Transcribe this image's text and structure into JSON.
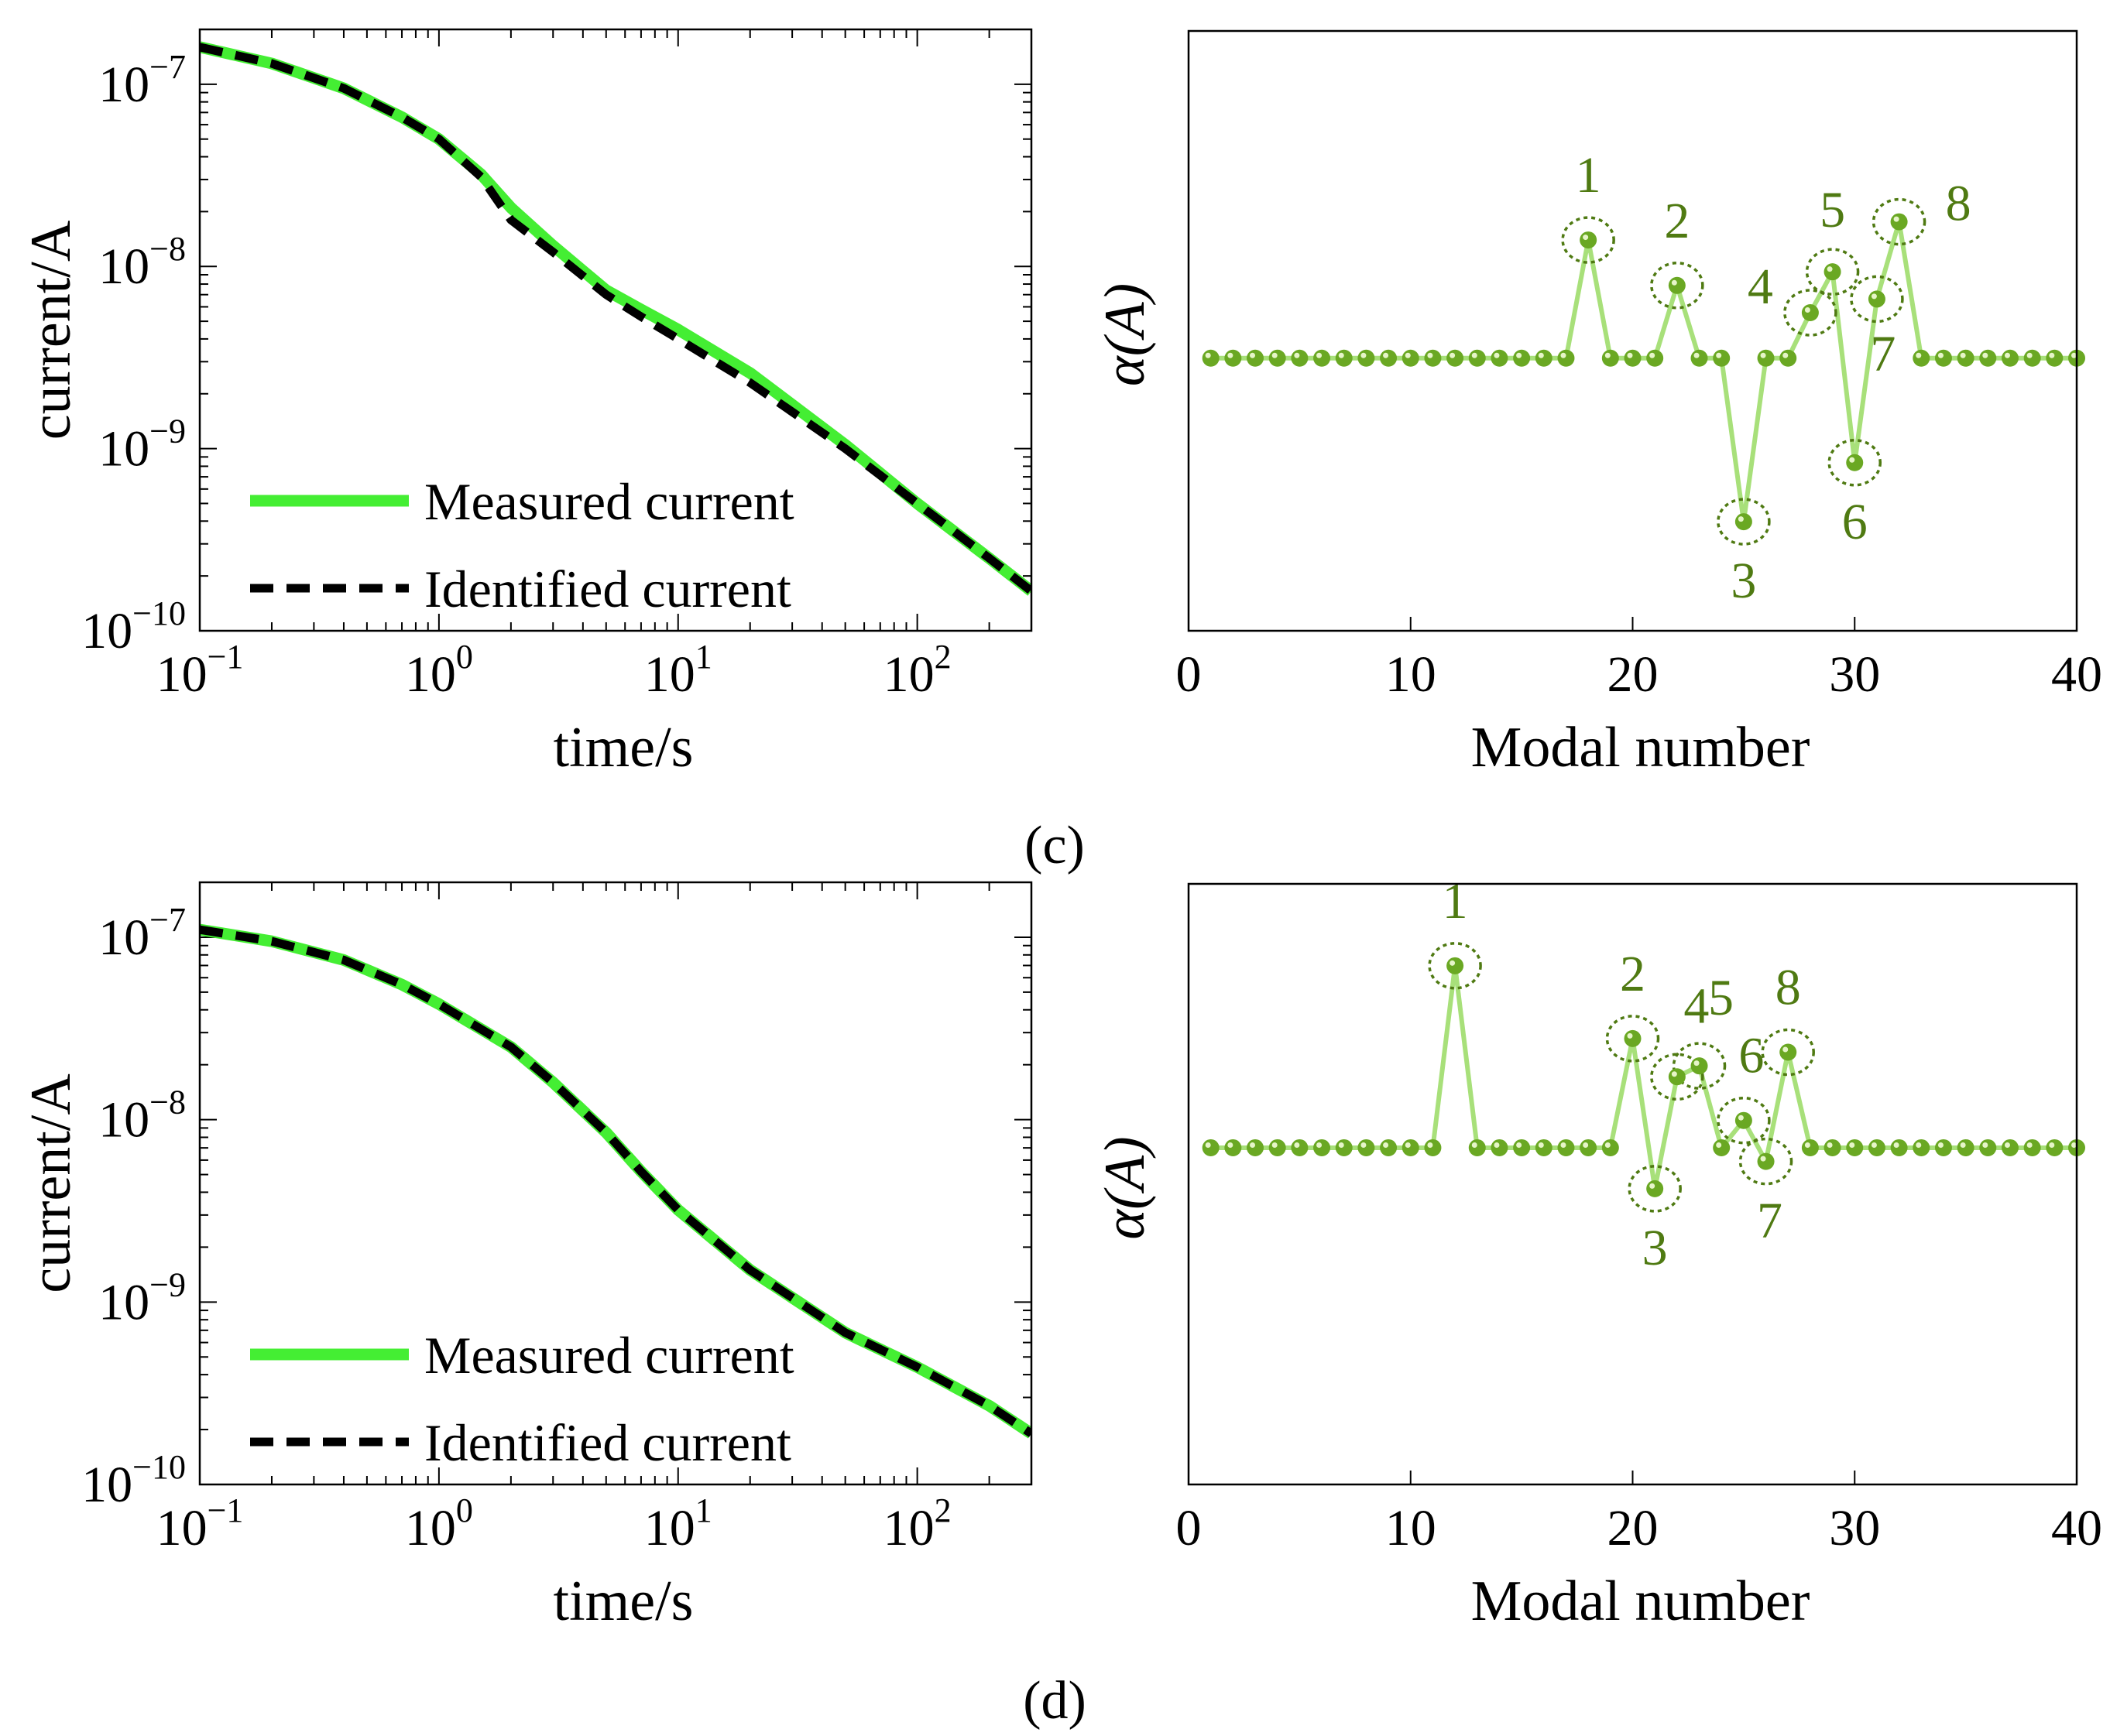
{
  "colors": {
    "measured": "#44ee33",
    "identified": "#000000",
    "modal": "#6aa823",
    "modal_line": "#a8e07a",
    "annotation": "#4f7a12"
  },
  "panels": [
    {
      "label": "(c)"
    },
    {
      "label": "(d)"
    }
  ],
  "chart_data": [
    {
      "id": "c-left",
      "type": "line",
      "scale": "loglog",
      "xlabel": "time/s",
      "ylabel": "current/A",
      "xlim": [
        0.1,
        300
      ],
      "ylim": [
        1e-10,
        2e-07
      ],
      "xticks": [
        0.1,
        1,
        10,
        100
      ],
      "xtick_labels": [
        "10",
        "10",
        "10",
        "10"
      ],
      "xtick_exps": [
        "−1",
        "0",
        "1",
        "2"
      ],
      "yticks": [
        1e-10,
        1e-09,
        1e-08,
        1e-07
      ],
      "ytick_labels": [
        "10",
        "10",
        "10",
        "10"
      ],
      "ytick_exps": [
        "−10",
        "−9",
        "−8",
        "−7"
      ],
      "legend_position": "bottom-left",
      "series": [
        {
          "name": "Measured current",
          "style": "solid",
          "x": [
            0.1,
            0.2,
            0.4,
            0.7,
            1.0,
            1.5,
            2.0,
            3.0,
            5.0,
            7.0,
            10,
            20,
            50,
            100,
            200,
            300
          ],
          "y": [
            1.6e-07,
            1.3e-07,
            9.5e-08,
            6.6e-08,
            5e-08,
            3.2e-08,
            2.1e-08,
            1.3e-08,
            7.4e-09,
            5.8e-09,
            4.5e-09,
            2.6e-09,
            1.05e-09,
            5e-10,
            2.5e-10,
            1.65e-10
          ]
        },
        {
          "name": "Identified current",
          "style": "dashed",
          "x": [
            0.1,
            0.2,
            0.4,
            0.7,
            1.0,
            1.5,
            2.0,
            3.0,
            5.0,
            7.0,
            10,
            20,
            50,
            100,
            200,
            300
          ],
          "y": [
            1.6e-07,
            1.3e-07,
            9.5e-08,
            6.6e-08,
            5e-08,
            3.1e-08,
            1.8e-08,
            1.2e-08,
            7e-09,
            5.3e-09,
            4e-09,
            2.3e-09,
            1e-09,
            5e-10,
            2.5e-10,
            1.65e-10
          ]
        }
      ]
    },
    {
      "id": "c-right",
      "type": "line",
      "markers": true,
      "xlabel": "Modal number",
      "ylabel": "α(A)",
      "xlim": [
        0,
        40
      ],
      "ylim": [
        -3,
        3.6
      ],
      "xticks": [
        0,
        10,
        20,
        30,
        40
      ],
      "xtick_labels": [
        "0",
        "10",
        "20",
        "30",
        "40"
      ],
      "series": [
        {
          "name": "alpha",
          "x": [
            1,
            2,
            3,
            4,
            5,
            6,
            7,
            8,
            9,
            10,
            11,
            12,
            13,
            14,
            15,
            16,
            17,
            18,
            19,
            20,
            21,
            22,
            23,
            24,
            25,
            26,
            27,
            28,
            29,
            30,
            31,
            32,
            33,
            34,
            35,
            36,
            37,
            38,
            39,
            40
          ],
          "y": [
            0,
            0,
            0,
            0,
            0,
            0,
            0,
            0,
            0,
            0,
            0,
            0,
            0,
            0,
            0,
            0,
            0,
            1.3,
            0,
            0,
            0,
            0.8,
            0,
            0,
            -1.8,
            0,
            0,
            0.5,
            0.95,
            -1.15,
            0.65,
            1.5,
            0,
            0,
            0,
            0,
            0,
            0,
            0,
            0
          ]
        }
      ],
      "annotations": [
        {
          "text": "1",
          "x": 18,
          "y": 1.3
        },
        {
          "text": "2",
          "x": 22,
          "y": 0.8
        },
        {
          "text": "3",
          "x": 25,
          "y": -1.8
        },
        {
          "text": "4",
          "x": 28,
          "y": 0.5
        },
        {
          "text": "5",
          "x": 29,
          "y": 0.95
        },
        {
          "text": "6",
          "x": 30,
          "y": -1.15
        },
        {
          "text": "7",
          "x": 31,
          "y": 0.65
        },
        {
          "text": "8",
          "x": 32,
          "y": 1.5
        }
      ]
    },
    {
      "id": "d-left",
      "type": "line",
      "scale": "loglog",
      "xlabel": "time/s",
      "ylabel": "current/A",
      "xlim": [
        0.1,
        300
      ],
      "ylim": [
        1e-10,
        2e-07
      ],
      "xticks": [
        0.1,
        1,
        10,
        100
      ],
      "xtick_labels": [
        "10",
        "10",
        "10",
        "10"
      ],
      "xtick_exps": [
        "−1",
        "0",
        "1",
        "2"
      ],
      "yticks": [
        1e-10,
        1e-09,
        1e-08,
        1e-07
      ],
      "ytick_labels": [
        "10",
        "10",
        "10",
        "10"
      ],
      "ytick_exps": [
        "−10",
        "−9",
        "−8",
        "−7"
      ],
      "legend_position": "bottom-left",
      "series": [
        {
          "name": "Measured current",
          "style": "solid",
          "x": [
            0.1,
            0.2,
            0.4,
            0.7,
            1.0,
            2.0,
            3.0,
            5.0,
            7.0,
            10,
            20,
            50,
            100,
            200,
            300
          ],
          "y": [
            1.1e-07,
            9.5e-08,
            7.5e-08,
            5.5e-08,
            4.3e-08,
            2.5e-08,
            1.6e-08,
            8.5e-09,
            5.2e-09,
            3.2e-09,
            1.5e-09,
            6.8e-10,
            4.4e-10,
            2.7e-10,
            1.9e-10
          ]
        },
        {
          "name": "Identified current",
          "style": "dashed",
          "x": [
            0.1,
            0.2,
            0.4,
            0.7,
            1.0,
            2.0,
            3.0,
            5.0,
            7.0,
            10,
            20,
            50,
            100,
            200,
            300
          ],
          "y": [
            1.1e-07,
            9.5e-08,
            7.5e-08,
            5.5e-08,
            4.3e-08,
            2.5e-08,
            1.6e-08,
            8.5e-09,
            5.2e-09,
            3.2e-09,
            1.5e-09,
            6.8e-10,
            4.4e-10,
            2.7e-10,
            1.9e-10
          ]
        }
      ]
    },
    {
      "id": "d-right",
      "type": "line",
      "markers": true,
      "xlabel": "Modal number",
      "ylabel": "α(A)",
      "xlim": [
        0,
        40
      ],
      "ylim": [
        -3.7,
        2.9
      ],
      "xticks": [
        0,
        10,
        20,
        30,
        40
      ],
      "xtick_labels": [
        "0",
        "10",
        "20",
        "30",
        "40"
      ],
      "series": [
        {
          "name": "alpha",
          "x": [
            1,
            2,
            3,
            4,
            5,
            6,
            7,
            8,
            9,
            10,
            11,
            12,
            13,
            14,
            15,
            16,
            17,
            18,
            19,
            20,
            21,
            22,
            23,
            24,
            25,
            26,
            27,
            28,
            29,
            30,
            31,
            32,
            33,
            34,
            35,
            36,
            37,
            38,
            39,
            40
          ],
          "y": [
            0,
            0,
            0,
            0,
            0,
            0,
            0,
            0,
            0,
            0,
            0,
            2.0,
            0,
            0,
            0,
            0,
            0,
            0,
            0,
            1.2,
            -0.45,
            0.78,
            0.9,
            0,
            0.3,
            -0.15,
            1.05,
            0,
            0,
            0,
            0,
            0,
            0,
            0,
            0,
            0,
            0,
            0,
            0,
            0
          ]
        }
      ],
      "annotations": [
        {
          "text": "1",
          "x": 12,
          "y": 2.0
        },
        {
          "text": "2",
          "x": 20,
          "y": 1.2
        },
        {
          "text": "3",
          "x": 21,
          "y": -0.45
        },
        {
          "text": "4",
          "x": 22,
          "y": 0.78
        },
        {
          "text": "5",
          "x": 23,
          "y": 0.9
        },
        {
          "text": "6",
          "x": 25,
          "y": 0.3
        },
        {
          "text": "7",
          "x": 26,
          "y": -0.15
        },
        {
          "text": "8",
          "x": 27,
          "y": 1.05
        }
      ]
    }
  ]
}
